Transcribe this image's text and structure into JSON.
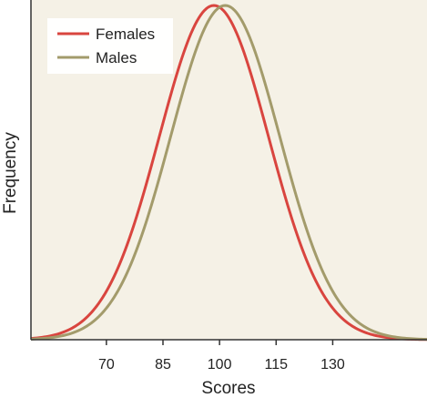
{
  "chart_data": {
    "type": "line",
    "title": "",
    "xlabel": "Scores",
    "ylabel": "Frequency",
    "xticks": [
      70,
      85,
      100,
      115,
      130
    ],
    "xlim": [
      50,
      155
    ],
    "ylim": [
      0,
      1
    ],
    "grid": false,
    "legend_position": "top-left",
    "plot_background": "#f5f1e6",
    "series": [
      {
        "name": "Females",
        "color": "#d9453f",
        "mean": 98.5,
        "sd": 14.5,
        "x": [
          55,
          60,
          65,
          70,
          75,
          80,
          85,
          90,
          95,
          98.5,
          100,
          105,
          110,
          115,
          120,
          125,
          130,
          135,
          140,
          145,
          150
        ],
        "y": [
          0.011,
          0.029,
          0.069,
          0.146,
          0.27,
          0.443,
          0.645,
          0.838,
          0.972,
          1.0,
          0.995,
          0.904,
          0.732,
          0.528,
          0.339,
          0.194,
          0.099,
          0.045,
          0.018,
          0.006,
          0.002
        ]
      },
      {
        "name": "Males",
        "color": "#a39b6b",
        "mean": 101.5,
        "sd": 14.5,
        "x": [
          55,
          60,
          65,
          70,
          75,
          80,
          85,
          90,
          95,
          100,
          101.5,
          105,
          110,
          115,
          120,
          125,
          130,
          135,
          140,
          145,
          150
        ],
        "y": [
          0.006,
          0.018,
          0.045,
          0.099,
          0.194,
          0.339,
          0.528,
          0.732,
          0.904,
          0.995,
          1.0,
          0.972,
          0.838,
          0.645,
          0.443,
          0.27,
          0.146,
          0.069,
          0.029,
          0.011,
          0.004
        ]
      }
    ]
  }
}
